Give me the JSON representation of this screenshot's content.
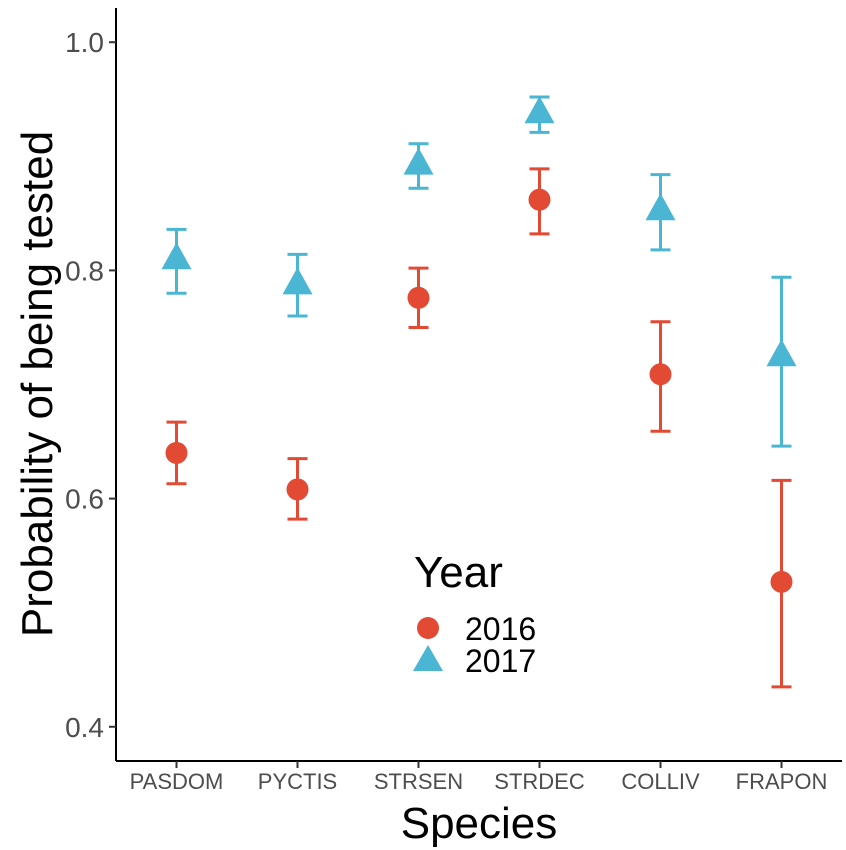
{
  "chart_data": {
    "type": "scatter",
    "xlabel": "Species",
    "ylabel": "Probability of being tested",
    "ylim": [
      0.37,
      1.03
    ],
    "yticks": [
      0.4,
      0.6,
      0.8,
      1.0
    ],
    "ytick_labels": [
      "0.4",
      "0.6",
      "0.8",
      "1.0"
    ],
    "categories": [
      "PASDOM",
      "PYCTIS",
      "STRSEN",
      "STRDEC",
      "COLLIV",
      "FRAPON"
    ],
    "grid": false,
    "legend": {
      "title": "Year",
      "placement": "inside-bottom-center"
    },
    "series": [
      {
        "name": "2016",
        "shape": "circle",
        "color": "#e24a33",
        "values": [
          0.64,
          0.608,
          0.776,
          0.862,
          0.709,
          0.527
        ],
        "lower": [
          0.613,
          0.582,
          0.75,
          0.832,
          0.659,
          0.435
        ],
        "upper": [
          0.667,
          0.635,
          0.802,
          0.889,
          0.755,
          0.616
        ]
      },
      {
        "name": "2017",
        "shape": "triangle",
        "color": "#4ab6d4",
        "values": [
          0.81,
          0.788,
          0.893,
          0.938,
          0.853,
          0.725
        ],
        "lower": [
          0.78,
          0.76,
          0.872,
          0.921,
          0.818,
          0.646
        ],
        "upper": [
          0.836,
          0.814,
          0.911,
          0.952,
          0.884,
          0.794
        ]
      }
    ]
  }
}
